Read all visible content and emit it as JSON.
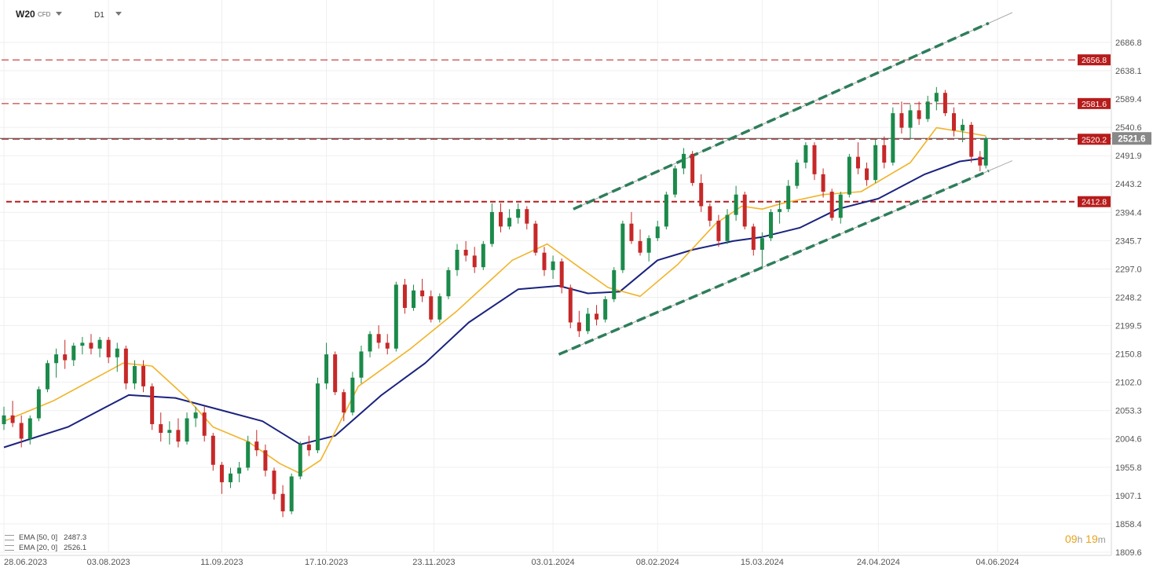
{
  "header": {
    "symbol": "W20",
    "instrument_type": "CFD",
    "timeframe": "D1"
  },
  "indicators": [
    {
      "label": "EMA [50, 0]",
      "value": "2487.3",
      "color": "#1a237e"
    },
    {
      "label": "EMA [20, 0]",
      "value": "2526.1",
      "color": "#f0b429"
    }
  ],
  "countdown": {
    "hours": "09",
    "hours_unit": "h",
    "minutes": "19",
    "minutes_unit": "m"
  },
  "chart_data": {
    "type": "candlestick",
    "y_ticks": [
      "2686.8",
      "2638.1",
      "2589.4",
      "2540.6",
      "2491.9",
      "2443.2",
      "2394.4",
      "2345.7",
      "2297.0",
      "2248.2",
      "2199.5",
      "2150.8",
      "2102.0",
      "2053.3",
      "2004.6",
      "1955.8",
      "1907.1",
      "1858.4",
      "1809.6"
    ],
    "x_ticks": [
      "28.06.2023",
      "03.08.2023",
      "11.09.2023",
      "17.10.2023",
      "23.11.2023",
      "03.01.2024",
      "08.02.2024",
      "15.03.2024",
      "24.04.2024",
      "04.06.2024"
    ],
    "ylim": [
      1809.6,
      2686.8
    ],
    "grid": true,
    "current_price": {
      "value": 2521.6,
      "label": "2521.6",
      "color": "#888888"
    },
    "levels": [
      {
        "value": 2656.8,
        "label": "2656.8",
        "color": "#b71c1c"
      },
      {
        "value": 2581.6,
        "label": "2581.6",
        "color": "#b71c1c"
      },
      {
        "value": 2520.2,
        "label": "2520.2",
        "color": "#b71c1c"
      },
      {
        "value": 2412.8,
        "label": "2412.8",
        "color": "#b71c1c"
      }
    ],
    "channel": {
      "upper": [
        {
          "date": "2024-01-10",
          "value": 2400
        },
        {
          "date": "2024-06-01",
          "value": 2720
        }
      ],
      "lower": [
        {
          "date": "2024-01-05",
          "value": 2150
        },
        {
          "date": "2024-06-01",
          "value": 2466
        }
      ],
      "color": "#2e7d5b"
    },
    "colors": {
      "up": "#1b8a4a",
      "down": "#c62828",
      "ema50": "#1a237e",
      "ema20": "#f0b429"
    },
    "series": [
      {
        "name": "EMA [50, 0]",
        "x": [
          "2023-06-28",
          "2023-07-20",
          "2023-08-10",
          "2023-08-26",
          "2023-09-10",
          "2023-09-25",
          "2023-10-08",
          "2023-10-20",
          "2023-11-05",
          "2023-11-20",
          "2023-12-05",
          "2023-12-22",
          "2024-01-05",
          "2024-01-15",
          "2024-01-26",
          "2024-02-08",
          "2024-02-20",
          "2024-03-05",
          "2024-03-15",
          "2024-03-28",
          "2024-04-10",
          "2024-04-24",
          "2024-05-10",
          "2024-05-22",
          "2024-05-31"
        ],
        "values": [
          1990,
          2025,
          2080,
          2075,
          2055,
          2035,
          1995,
          2010,
          2080,
          2135,
          2205,
          2262,
          2268,
          2255,
          2258,
          2312,
          2330,
          2345,
          2352,
          2368,
          2400,
          2418,
          2460,
          2482,
          2488
        ]
      },
      {
        "name": "EMA [20, 0]",
        "x": [
          "2023-06-28",
          "2023-07-15",
          "2023-08-08",
          "2023-08-18",
          "2023-08-30",
          "2023-09-08",
          "2023-09-20",
          "2023-10-01",
          "2023-10-08",
          "2023-10-15",
          "2023-10-28",
          "2023-11-15",
          "2023-12-01",
          "2023-12-20",
          "2024-01-01",
          "2024-01-12",
          "2024-01-22",
          "2024-02-02",
          "2024-02-15",
          "2024-02-28",
          "2024-03-08",
          "2024-03-15",
          "2024-03-22",
          "2024-04-05",
          "2024-04-18",
          "2024-05-05",
          "2024-05-14",
          "2024-05-24",
          "2024-05-31"
        ],
        "values": [
          2035,
          2070,
          2135,
          2130,
          2075,
          2025,
          2000,
          1962,
          1945,
          1968,
          2095,
          2160,
          2225,
          2312,
          2340,
          2300,
          2265,
          2250,
          2305,
          2375,
          2405,
          2400,
          2410,
          2425,
          2430,
          2480,
          2540,
          2532,
          2526
        ]
      }
    ],
    "candles": [
      {
        "d": "2023-06-28",
        "o": 2030,
        "h": 2060,
        "l": 2020,
        "c": 2045
      },
      {
        "d": "2023-07-01",
        "o": 2045,
        "h": 2070,
        "l": 2025,
        "c": 2032
      },
      {
        "d": "2023-07-04",
        "o": 2032,
        "h": 2045,
        "l": 1990,
        "c": 2005
      },
      {
        "d": "2023-07-07",
        "o": 2005,
        "h": 2045,
        "l": 1995,
        "c": 2040
      },
      {
        "d": "2023-07-10",
        "o": 2040,
        "h": 2095,
        "l": 2035,
        "c": 2090
      },
      {
        "d": "2023-07-13",
        "o": 2090,
        "h": 2140,
        "l": 2085,
        "c": 2135
      },
      {
        "d": "2023-07-16",
        "o": 2135,
        "h": 2160,
        "l": 2110,
        "c": 2150
      },
      {
        "d": "2023-07-19",
        "o": 2150,
        "h": 2175,
        "l": 2125,
        "c": 2140
      },
      {
        "d": "2023-07-22",
        "o": 2140,
        "h": 2170,
        "l": 2130,
        "c": 2165
      },
      {
        "d": "2023-07-25",
        "o": 2165,
        "h": 2180,
        "l": 2150,
        "c": 2170
      },
      {
        "d": "2023-07-28",
        "o": 2170,
        "h": 2185,
        "l": 2150,
        "c": 2160
      },
      {
        "d": "2023-07-31",
        "o": 2160,
        "h": 2180,
        "l": 2145,
        "c": 2175
      },
      {
        "d": "2023-08-03",
        "o": 2175,
        "h": 2180,
        "l": 2135,
        "c": 2145
      },
      {
        "d": "2023-08-06",
        "o": 2145,
        "h": 2170,
        "l": 2120,
        "c": 2160
      },
      {
        "d": "2023-08-09",
        "o": 2160,
        "h": 2165,
        "l": 2090,
        "c": 2100
      },
      {
        "d": "2023-08-12",
        "o": 2100,
        "h": 2140,
        "l": 2090,
        "c": 2130
      },
      {
        "d": "2023-08-15",
        "o": 2130,
        "h": 2140,
        "l": 2085,
        "c": 2095
      },
      {
        "d": "2023-08-18",
        "o": 2095,
        "h": 2100,
        "l": 2020,
        "c": 2030
      },
      {
        "d": "2023-08-21",
        "o": 2030,
        "h": 2050,
        "l": 2000,
        "c": 2015
      },
      {
        "d": "2023-08-24",
        "o": 2015,
        "h": 2035,
        "l": 1995,
        "c": 2020
      },
      {
        "d": "2023-08-27",
        "o": 2020,
        "h": 2040,
        "l": 1990,
        "c": 2000
      },
      {
        "d": "2023-08-30",
        "o": 2000,
        "h": 2050,
        "l": 1995,
        "c": 2040
      },
      {
        "d": "2023-09-02",
        "o": 2040,
        "h": 2060,
        "l": 2025,
        "c": 2050
      },
      {
        "d": "2023-09-05",
        "o": 2050,
        "h": 2060,
        "l": 2000,
        "c": 2010
      },
      {
        "d": "2023-09-08",
        "o": 2010,
        "h": 2015,
        "l": 1950,
        "c": 1960
      },
      {
        "d": "2023-09-11",
        "o": 1960,
        "h": 1965,
        "l": 1910,
        "c": 1930
      },
      {
        "d": "2023-09-14",
        "o": 1930,
        "h": 1955,
        "l": 1920,
        "c": 1945
      },
      {
        "d": "2023-09-17",
        "o": 1945,
        "h": 1965,
        "l": 1930,
        "c": 1955
      },
      {
        "d": "2023-09-20",
        "o": 1955,
        "h": 2010,
        "l": 1950,
        "c": 2000
      },
      {
        "d": "2023-09-23",
        "o": 2000,
        "h": 2020,
        "l": 1975,
        "c": 1985
      },
      {
        "d": "2023-09-26",
        "o": 1985,
        "h": 1995,
        "l": 1940,
        "c": 1950
      },
      {
        "d": "2023-09-29",
        "o": 1950,
        "h": 1955,
        "l": 1900,
        "c": 1910
      },
      {
        "d": "2023-10-02",
        "o": 1910,
        "h": 1925,
        "l": 1870,
        "c": 1880
      },
      {
        "d": "2023-10-05",
        "o": 1880,
        "h": 1945,
        "l": 1875,
        "c": 1940
      },
      {
        "d": "2023-10-08",
        "o": 1940,
        "h": 2000,
        "l": 1935,
        "c": 1995
      },
      {
        "d": "2023-10-11",
        "o": 1995,
        "h": 2010,
        "l": 1975,
        "c": 1985
      },
      {
        "d": "2023-10-14",
        "o": 1985,
        "h": 2110,
        "l": 1980,
        "c": 2100
      },
      {
        "d": "2023-10-17",
        "o": 2100,
        "h": 2170,
        "l": 2090,
        "c": 2150
      },
      {
        "d": "2023-10-20",
        "o": 2150,
        "h": 2155,
        "l": 2080,
        "c": 2085
      },
      {
        "d": "2023-10-23",
        "o": 2085,
        "h": 2090,
        "l": 2035,
        "c": 2050
      },
      {
        "d": "2023-10-26",
        "o": 2050,
        "h": 2120,
        "l": 2045,
        "c": 2110
      },
      {
        "d": "2023-10-29",
        "o": 2110,
        "h": 2165,
        "l": 2100,
        "c": 2155
      },
      {
        "d": "2023-11-01",
        "o": 2155,
        "h": 2190,
        "l": 2145,
        "c": 2185
      },
      {
        "d": "2023-11-04",
        "o": 2185,
        "h": 2200,
        "l": 2160,
        "c": 2170
      },
      {
        "d": "2023-11-07",
        "o": 2170,
        "h": 2185,
        "l": 2150,
        "c": 2160
      },
      {
        "d": "2023-11-10",
        "o": 2160,
        "h": 2275,
        "l": 2155,
        "c": 2270
      },
      {
        "d": "2023-11-13",
        "o": 2270,
        "h": 2280,
        "l": 2220,
        "c": 2230
      },
      {
        "d": "2023-11-16",
        "o": 2230,
        "h": 2270,
        "l": 2225,
        "c": 2260
      },
      {
        "d": "2023-11-19",
        "o": 2260,
        "h": 2280,
        "l": 2240,
        "c": 2250
      },
      {
        "d": "2023-11-22",
        "o": 2250,
        "h": 2260,
        "l": 2205,
        "c": 2210
      },
      {
        "d": "2023-11-25",
        "o": 2210,
        "h": 2255,
        "l": 2205,
        "c": 2250
      },
      {
        "d": "2023-11-28",
        "o": 2250,
        "h": 2300,
        "l": 2245,
        "c": 2295
      },
      {
        "d": "2023-12-01",
        "o": 2295,
        "h": 2340,
        "l": 2285,
        "c": 2330
      },
      {
        "d": "2023-12-04",
        "o": 2330,
        "h": 2345,
        "l": 2310,
        "c": 2320
      },
      {
        "d": "2023-12-07",
        "o": 2320,
        "h": 2335,
        "l": 2290,
        "c": 2300
      },
      {
        "d": "2023-12-10",
        "o": 2300,
        "h": 2345,
        "l": 2295,
        "c": 2340
      },
      {
        "d": "2023-12-13",
        "o": 2340,
        "h": 2410,
        "l": 2335,
        "c": 2395
      },
      {
        "d": "2023-12-16",
        "o": 2395,
        "h": 2410,
        "l": 2360,
        "c": 2370
      },
      {
        "d": "2023-12-19",
        "o": 2370,
        "h": 2400,
        "l": 2365,
        "c": 2385
      },
      {
        "d": "2023-12-22",
        "o": 2385,
        "h": 2410,
        "l": 2375,
        "c": 2400
      },
      {
        "d": "2023-12-25",
        "o": 2400,
        "h": 2405,
        "l": 2365,
        "c": 2375
      },
      {
        "d": "2023-12-28",
        "o": 2375,
        "h": 2380,
        "l": 2320,
        "c": 2325
      },
      {
        "d": "2023-12-31",
        "o": 2325,
        "h": 2335,
        "l": 2285,
        "c": 2295
      },
      {
        "d": "2024-01-03",
        "o": 2295,
        "h": 2320,
        "l": 2280,
        "c": 2310
      },
      {
        "d": "2024-01-06",
        "o": 2310,
        "h": 2315,
        "l": 2255,
        "c": 2265
      },
      {
        "d": "2024-01-09",
        "o": 2265,
        "h": 2270,
        "l": 2195,
        "c": 2205
      },
      {
        "d": "2024-01-12",
        "o": 2205,
        "h": 2225,
        "l": 2180,
        "c": 2190
      },
      {
        "d": "2024-01-15",
        "o": 2190,
        "h": 2230,
        "l": 2185,
        "c": 2220
      },
      {
        "d": "2024-01-18",
        "o": 2220,
        "h": 2235,
        "l": 2200,
        "c": 2210
      },
      {
        "d": "2024-01-21",
        "o": 2210,
        "h": 2250,
        "l": 2205,
        "c": 2245
      },
      {
        "d": "2024-01-24",
        "o": 2245,
        "h": 2300,
        "l": 2240,
        "c": 2295
      },
      {
        "d": "2024-01-27",
        "o": 2295,
        "h": 2380,
        "l": 2290,
        "c": 2375
      },
      {
        "d": "2024-01-30",
        "o": 2375,
        "h": 2395,
        "l": 2340,
        "c": 2345
      },
      {
        "d": "2024-02-02",
        "o": 2345,
        "h": 2365,
        "l": 2320,
        "c": 2325
      },
      {
        "d": "2024-02-05",
        "o": 2325,
        "h": 2355,
        "l": 2310,
        "c": 2350
      },
      {
        "d": "2024-02-08",
        "o": 2350,
        "h": 2380,
        "l": 2345,
        "c": 2370
      },
      {
        "d": "2024-02-11",
        "o": 2370,
        "h": 2430,
        "l": 2365,
        "c": 2425
      },
      {
        "d": "2024-02-14",
        "o": 2425,
        "h": 2475,
        "l": 2420,
        "c": 2470
      },
      {
        "d": "2024-02-17",
        "o": 2470,
        "h": 2505,
        "l": 2460,
        "c": 2495
      },
      {
        "d": "2024-02-20",
        "o": 2495,
        "h": 2500,
        "l": 2440,
        "c": 2445
      },
      {
        "d": "2024-02-23",
        "o": 2445,
        "h": 2460,
        "l": 2395,
        "c": 2405
      },
      {
        "d": "2024-02-26",
        "o": 2405,
        "h": 2410,
        "l": 2370,
        "c": 2380
      },
      {
        "d": "2024-02-29",
        "o": 2380,
        "h": 2390,
        "l": 2335,
        "c": 2345
      },
      {
        "d": "2024-03-03",
        "o": 2345,
        "h": 2400,
        "l": 2340,
        "c": 2390
      },
      {
        "d": "2024-03-06",
        "o": 2390,
        "h": 2440,
        "l": 2380,
        "c": 2425
      },
      {
        "d": "2024-03-09",
        "o": 2425,
        "h": 2430,
        "l": 2365,
        "c": 2370
      },
      {
        "d": "2024-03-12",
        "o": 2370,
        "h": 2375,
        "l": 2320,
        "c": 2330
      },
      {
        "d": "2024-03-15",
        "o": 2330,
        "h": 2360,
        "l": 2300,
        "c": 2350
      },
      {
        "d": "2024-03-18",
        "o": 2350,
        "h": 2400,
        "l": 2345,
        "c": 2395
      },
      {
        "d": "2024-03-21",
        "o": 2395,
        "h": 2415,
        "l": 2375,
        "c": 2400
      },
      {
        "d": "2024-03-24",
        "o": 2400,
        "h": 2450,
        "l": 2395,
        "c": 2440
      },
      {
        "d": "2024-03-27",
        "o": 2440,
        "h": 2485,
        "l": 2435,
        "c": 2480
      },
      {
        "d": "2024-03-30",
        "o": 2480,
        "h": 2515,
        "l": 2470,
        "c": 2510
      },
      {
        "d": "2024-04-02",
        "o": 2510,
        "h": 2515,
        "l": 2450,
        "c": 2460
      },
      {
        "d": "2024-04-05",
        "o": 2460,
        "h": 2470,
        "l": 2420,
        "c": 2430
      },
      {
        "d": "2024-04-08",
        "o": 2430,
        "h": 2435,
        "l": 2380,
        "c": 2385
      },
      {
        "d": "2024-04-11",
        "o": 2385,
        "h": 2430,
        "l": 2375,
        "c": 2425
      },
      {
        "d": "2024-04-14",
        "o": 2425,
        "h": 2495,
        "l": 2420,
        "c": 2490
      },
      {
        "d": "2024-04-17",
        "o": 2490,
        "h": 2515,
        "l": 2460,
        "c": 2470
      },
      {
        "d": "2024-04-20",
        "o": 2470,
        "h": 2480,
        "l": 2440,
        "c": 2450
      },
      {
        "d": "2024-04-23",
        "o": 2450,
        "h": 2520,
        "l": 2445,
        "c": 2510
      },
      {
        "d": "2024-04-26",
        "o": 2510,
        "h": 2525,
        "l": 2470,
        "c": 2480
      },
      {
        "d": "2024-04-29",
        "o": 2480,
        "h": 2575,
        "l": 2475,
        "c": 2565
      },
      {
        "d": "2024-05-02",
        "o": 2565,
        "h": 2585,
        "l": 2530,
        "c": 2540
      },
      {
        "d": "2024-05-05",
        "o": 2540,
        "h": 2580,
        "l": 2520,
        "c": 2570
      },
      {
        "d": "2024-05-08",
        "o": 2570,
        "h": 2585,
        "l": 2545,
        "c": 2555
      },
      {
        "d": "2024-05-11",
        "o": 2555,
        "h": 2595,
        "l": 2550,
        "c": 2585
      },
      {
        "d": "2024-05-14",
        "o": 2585,
        "h": 2610,
        "l": 2570,
        "c": 2600
      },
      {
        "d": "2024-05-17",
        "o": 2600,
        "h": 2605,
        "l": 2560,
        "c": 2565
      },
      {
        "d": "2024-05-20",
        "o": 2565,
        "h": 2575,
        "l": 2525,
        "c": 2535
      },
      {
        "d": "2024-05-23",
        "o": 2535,
        "h": 2555,
        "l": 2515,
        "c": 2545
      },
      {
        "d": "2024-05-26",
        "o": 2545,
        "h": 2550,
        "l": 2480,
        "c": 2490
      },
      {
        "d": "2024-05-29",
        "o": 2490,
        "h": 2500,
        "l": 2465,
        "c": 2475
      },
      {
        "d": "2024-05-31",
        "o": 2475,
        "h": 2525,
        "l": 2470,
        "c": 2521.6
      }
    ]
  }
}
